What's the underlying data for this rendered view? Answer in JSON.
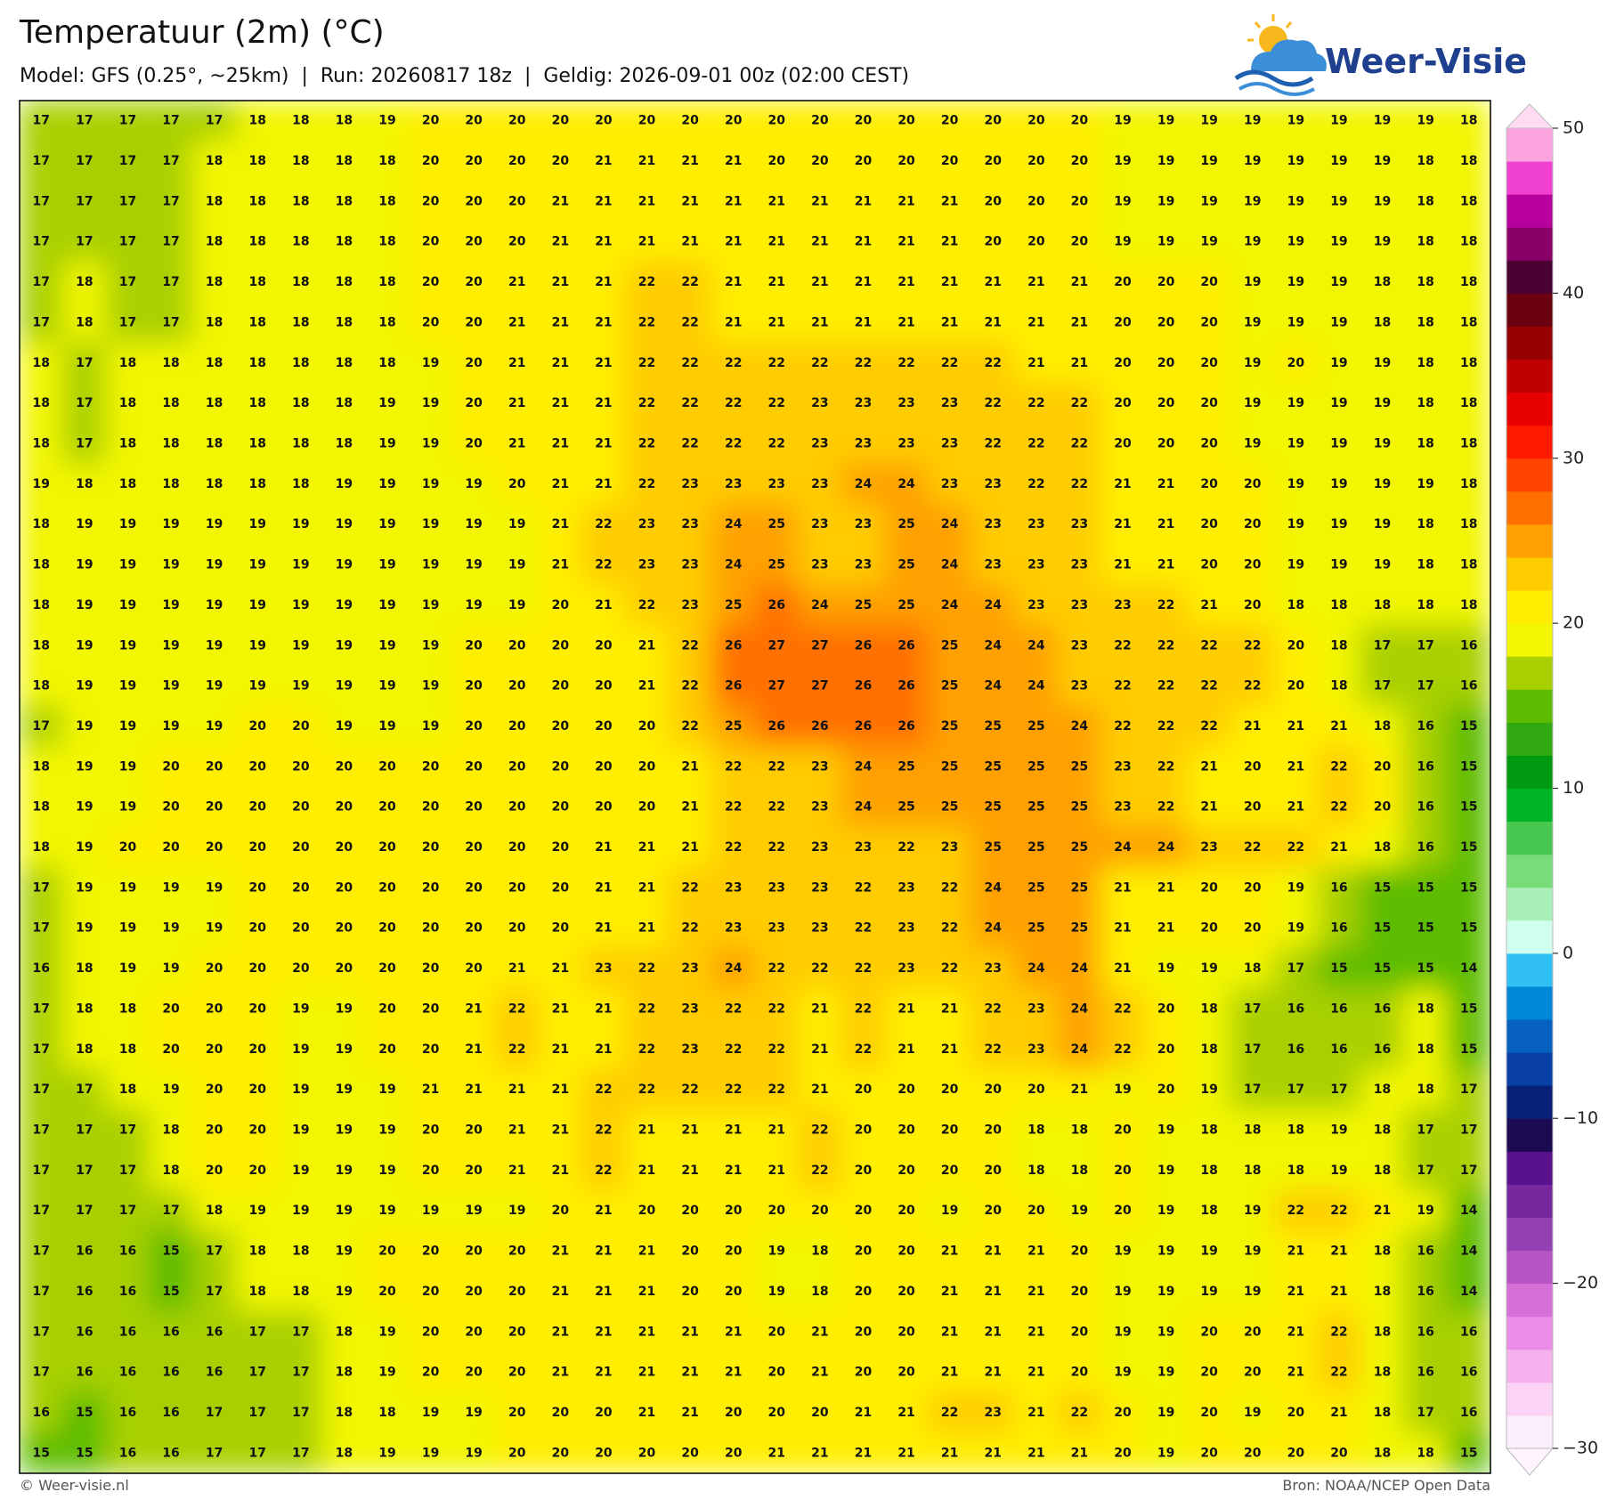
{
  "header": {
    "title": "Temperatuur (2m) (°C)",
    "subtitle": "Model: GFS (0.25°, ~25km)  |  Run: 20260817 18z  |  Geldig: 2026-09-01 00z (02:00 CEST)",
    "logo": "Weer-Visie"
  },
  "map": {
    "rows": [
      [
        17,
        17,
        17,
        17,
        17,
        18,
        18,
        18,
        19,
        20,
        20,
        20,
        20,
        20,
        20,
        20,
        20,
        20,
        20,
        20,
        20,
        20,
        20,
        20,
        20,
        19,
        19,
        19,
        19,
        19,
        19,
        19,
        19,
        18
      ],
      [
        17,
        17,
        17,
        17,
        18,
        18,
        18,
        18,
        18,
        20,
        20,
        20,
        20,
        21,
        21,
        21,
        21,
        20,
        20,
        20,
        20,
        20,
        20,
        20,
        20,
        19,
        19,
        19,
        19,
        19,
        19,
        19,
        18,
        18
      ],
      [
        17,
        17,
        17,
        17,
        18,
        18,
        18,
        18,
        18,
        20,
        20,
        20,
        21,
        21,
        21,
        21,
        21,
        21,
        21,
        21,
        21,
        21,
        20,
        20,
        20,
        19,
        19,
        19,
        19,
        19,
        19,
        19,
        18,
        18
      ],
      [
        17,
        17,
        17,
        17,
        18,
        18,
        18,
        18,
        18,
        20,
        20,
        20,
        21,
        21,
        21,
        21,
        21,
        21,
        21,
        21,
        21,
        21,
        20,
        20,
        20,
        19,
        19,
        19,
        19,
        19,
        19,
        19,
        18,
        18
      ],
      [
        17,
        18,
        17,
        17,
        18,
        18,
        18,
        18,
        18,
        20,
        20,
        21,
        21,
        21,
        22,
        22,
        21,
        21,
        21,
        21,
        21,
        21,
        21,
        21,
        21,
        20,
        20,
        20,
        19,
        19,
        19,
        18,
        18,
        18
      ],
      [
        17,
        18,
        17,
        17,
        18,
        18,
        18,
        18,
        18,
        20,
        20,
        21,
        21,
        21,
        22,
        22,
        21,
        21,
        21,
        21,
        21,
        21,
        21,
        21,
        21,
        20,
        20,
        20,
        19,
        19,
        19,
        18,
        18,
        18
      ],
      [
        18,
        17,
        18,
        18,
        18,
        18,
        18,
        18,
        18,
        19,
        20,
        21,
        21,
        21,
        22,
        22,
        22,
        22,
        22,
        22,
        22,
        22,
        22,
        21,
        21,
        20,
        20,
        20,
        19,
        20,
        19,
        19,
        18,
        18
      ],
      [
        18,
        17,
        18,
        18,
        18,
        18,
        18,
        18,
        19,
        19,
        20,
        21,
        21,
        21,
        22,
        22,
        22,
        22,
        23,
        23,
        23,
        23,
        22,
        22,
        22,
        20,
        20,
        20,
        19,
        19,
        19,
        19,
        18,
        18
      ],
      [
        18,
        17,
        18,
        18,
        18,
        18,
        18,
        18,
        19,
        19,
        20,
        21,
        21,
        21,
        22,
        22,
        22,
        22,
        23,
        23,
        23,
        23,
        22,
        22,
        22,
        20,
        20,
        20,
        19,
        19,
        19,
        19,
        18,
        18
      ],
      [
        19,
        18,
        18,
        18,
        18,
        18,
        18,
        19,
        19,
        19,
        19,
        20,
        21,
        21,
        22,
        23,
        23,
        23,
        23,
        24,
        24,
        23,
        23,
        22,
        22,
        21,
        21,
        20,
        20,
        19,
        19,
        19,
        19,
        18
      ],
      [
        18,
        19,
        19,
        19,
        19,
        19,
        19,
        19,
        19,
        19,
        19,
        19,
        21,
        22,
        23,
        23,
        24,
        25,
        23,
        23,
        25,
        24,
        23,
        23,
        23,
        21,
        21,
        20,
        20,
        19,
        19,
        19,
        18,
        18
      ],
      [
        18,
        19,
        19,
        19,
        19,
        19,
        19,
        19,
        19,
        19,
        19,
        19,
        21,
        22,
        23,
        23,
        24,
        25,
        23,
        23,
        25,
        24,
        23,
        23,
        23,
        21,
        21,
        20,
        20,
        19,
        19,
        19,
        18,
        18
      ],
      [
        18,
        19,
        19,
        19,
        19,
        19,
        19,
        19,
        19,
        19,
        19,
        19,
        20,
        21,
        22,
        23,
        25,
        26,
        24,
        25,
        25,
        24,
        24,
        23,
        23,
        23,
        22,
        21,
        20,
        18,
        18,
        18,
        18,
        18
      ],
      [
        18,
        19,
        19,
        19,
        19,
        19,
        19,
        19,
        19,
        19,
        20,
        20,
        20,
        20,
        21,
        22,
        26,
        27,
        27,
        26,
        26,
        25,
        24,
        24,
        23,
        22,
        22,
        22,
        22,
        20,
        18,
        17,
        17,
        16
      ],
      [
        18,
        19,
        19,
        19,
        19,
        19,
        19,
        19,
        19,
        19,
        20,
        20,
        20,
        20,
        21,
        22,
        26,
        27,
        27,
        26,
        26,
        25,
        24,
        24,
        23,
        22,
        22,
        22,
        22,
        20,
        18,
        17,
        17,
        16
      ],
      [
        17,
        19,
        19,
        19,
        19,
        20,
        20,
        19,
        19,
        19,
        20,
        20,
        20,
        20,
        20,
        22,
        25,
        26,
        26,
        26,
        26,
        25,
        25,
        25,
        24,
        22,
        22,
        22,
        21,
        21,
        21,
        18,
        16,
        15
      ],
      [
        18,
        19,
        19,
        20,
        20,
        20,
        20,
        20,
        20,
        20,
        20,
        20,
        20,
        20,
        20,
        21,
        22,
        22,
        23,
        24,
        25,
        25,
        25,
        25,
        25,
        23,
        22,
        21,
        20,
        21,
        22,
        20,
        16,
        15
      ],
      [
        18,
        19,
        19,
        20,
        20,
        20,
        20,
        20,
        20,
        20,
        20,
        20,
        20,
        20,
        20,
        21,
        22,
        22,
        23,
        24,
        25,
        25,
        25,
        25,
        25,
        23,
        22,
        21,
        20,
        21,
        22,
        20,
        16,
        15
      ],
      [
        18,
        19,
        20,
        20,
        20,
        20,
        20,
        20,
        20,
        20,
        20,
        20,
        20,
        21,
        21,
        21,
        22,
        22,
        23,
        23,
        22,
        23,
        25,
        25,
        25,
        24,
        24,
        23,
        22,
        22,
        21,
        18,
        16,
        15
      ],
      [
        17,
        19,
        19,
        19,
        19,
        20,
        20,
        20,
        20,
        20,
        20,
        20,
        20,
        21,
        21,
        22,
        23,
        23,
        23,
        22,
        23,
        22,
        24,
        25,
        25,
        21,
        21,
        20,
        20,
        19,
        16,
        15,
        15,
        15
      ],
      [
        17,
        19,
        19,
        19,
        19,
        20,
        20,
        20,
        20,
        20,
        20,
        20,
        20,
        21,
        21,
        22,
        23,
        23,
        23,
        22,
        23,
        22,
        24,
        25,
        25,
        21,
        21,
        20,
        20,
        19,
        16,
        15,
        15,
        15
      ],
      [
        16,
        18,
        19,
        19,
        20,
        20,
        20,
        20,
        20,
        20,
        20,
        21,
        21,
        23,
        22,
        23,
        24,
        22,
        22,
        22,
        23,
        22,
        23,
        24,
        24,
        21,
        19,
        19,
        18,
        17,
        15,
        15,
        15,
        14
      ],
      [
        17,
        18,
        18,
        20,
        20,
        20,
        19,
        19,
        20,
        20,
        21,
        22,
        21,
        21,
        22,
        23,
        22,
        22,
        21,
        22,
        21,
        21,
        22,
        23,
        24,
        22,
        20,
        18,
        17,
        16,
        16,
        16,
        18,
        15
      ],
      [
        17,
        18,
        18,
        20,
        20,
        20,
        19,
        19,
        20,
        20,
        21,
        22,
        21,
        21,
        22,
        23,
        22,
        22,
        21,
        22,
        21,
        21,
        22,
        23,
        24,
        22,
        20,
        18,
        17,
        16,
        16,
        16,
        18,
        15
      ],
      [
        17,
        17,
        18,
        19,
        20,
        20,
        19,
        19,
        19,
        21,
        21,
        21,
        21,
        22,
        22,
        22,
        22,
        22,
        21,
        20,
        20,
        20,
        20,
        20,
        21,
        19,
        20,
        19,
        17,
        17,
        17,
        18,
        18,
        17
      ],
      [
        17,
        17,
        17,
        18,
        20,
        20,
        19,
        19,
        19,
        20,
        20,
        21,
        21,
        22,
        21,
        21,
        21,
        21,
        22,
        20,
        20,
        20,
        20,
        18,
        18,
        20,
        19,
        18,
        18,
        18,
        19,
        18,
        17,
        17
      ],
      [
        17,
        17,
        17,
        18,
        20,
        20,
        19,
        19,
        19,
        20,
        20,
        21,
        21,
        22,
        21,
        21,
        21,
        21,
        22,
        20,
        20,
        20,
        20,
        18,
        18,
        20,
        19,
        18,
        18,
        18,
        19,
        18,
        17,
        17
      ],
      [
        17,
        17,
        17,
        17,
        18,
        19,
        19,
        19,
        19,
        19,
        19,
        19,
        20,
        21,
        20,
        20,
        20,
        20,
        20,
        20,
        20,
        19,
        20,
        20,
        19,
        20,
        19,
        18,
        19,
        22,
        22,
        21,
        19,
        14
      ],
      [
        17,
        16,
        16,
        15,
        17,
        18,
        18,
        19,
        20,
        20,
        20,
        20,
        21,
        21,
        21,
        20,
        20,
        19,
        18,
        20,
        20,
        21,
        21,
        21,
        20,
        19,
        19,
        19,
        19,
        21,
        21,
        18,
        16,
        14
      ],
      [
        17,
        16,
        16,
        15,
        17,
        18,
        18,
        19,
        20,
        20,
        20,
        20,
        21,
        21,
        21,
        20,
        20,
        19,
        18,
        20,
        20,
        21,
        21,
        21,
        20,
        19,
        19,
        19,
        19,
        21,
        21,
        18,
        16,
        14
      ],
      [
        17,
        16,
        16,
        16,
        16,
        17,
        17,
        18,
        19,
        20,
        20,
        20,
        21,
        21,
        21,
        21,
        21,
        20,
        21,
        20,
        20,
        21,
        21,
        21,
        20,
        19,
        19,
        20,
        20,
        21,
        22,
        18,
        16,
        16
      ],
      [
        17,
        16,
        16,
        16,
        16,
        17,
        17,
        18,
        19,
        20,
        20,
        20,
        21,
        21,
        21,
        21,
        21,
        20,
        21,
        20,
        20,
        21,
        21,
        21,
        20,
        19,
        19,
        20,
        20,
        21,
        22,
        18,
        16,
        16
      ],
      [
        16,
        15,
        16,
        16,
        17,
        17,
        17,
        18,
        18,
        19,
        19,
        20,
        20,
        20,
        21,
        21,
        20,
        20,
        20,
        21,
        21,
        22,
        23,
        21,
        22,
        20,
        19,
        20,
        19,
        20,
        21,
        18,
        17,
        16
      ],
      [
        15,
        15,
        16,
        16,
        17,
        17,
        17,
        18,
        19,
        19,
        19,
        20,
        20,
        20,
        20,
        20,
        20,
        21,
        21,
        21,
        21,
        21,
        21,
        21,
        21,
        20,
        19,
        20,
        20,
        20,
        20,
        18,
        18,
        15
      ]
    ],
    "colorbar": {
      "lim": [
        -30,
        50
      ],
      "ticks": [
        {
          "value": -30,
          "label": "−30"
        },
        {
          "value": -20,
          "label": "−20"
        },
        {
          "value": -10,
          "label": "−10"
        },
        0,
        10,
        20,
        30,
        40,
        50
      ],
      "colors": [
        "#fdeefb",
        "#fbd3f5",
        "#f5b0ee",
        "#ea8de6",
        "#d66fd8",
        "#b654c4",
        "#9540b2",
        "#78289e",
        "#5a118c",
        "#1c0a52",
        "#082078",
        "#0840a6",
        "#0660c0",
        "#0088d8",
        "#30c0f4",
        "#d0fff0",
        "#a8f0b8",
        "#78dc78",
        "#48c850",
        "#00b428",
        "#009a10",
        "#30aa10",
        "#5cbc00",
        "#a8d000",
        "#f2f600",
        "#ffee00",
        "#ffcc00",
        "#ffa000",
        "#ff7000",
        "#ff4400",
        "#ff1a00",
        "#e80000",
        "#c00000",
        "#960000",
        "#6a0010",
        "#4a0030",
        "#880066",
        "#b8009c",
        "#f040d0",
        "#fca4e0"
      ],
      "over_color": "#ffdcf4",
      "under_color": "#fff4fd"
    }
  },
  "footer": {
    "left": "© Weer-visie.nl",
    "right": "Bron: NOAA/NCEP Open Data"
  }
}
